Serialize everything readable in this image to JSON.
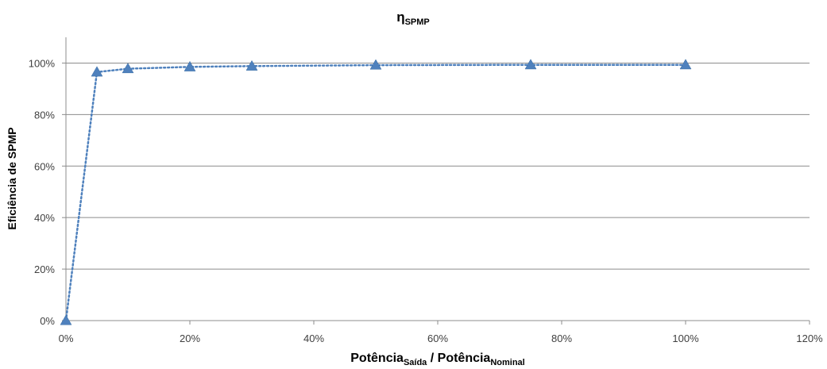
{
  "chart_data": {
    "type": "line",
    "title": {
      "main": "η",
      "subscript": "SPMP"
    },
    "xlabel": {
      "part1": "Potência",
      "sub1": "Saída",
      "sep": " / ",
      "part2": "Potência",
      "sub2": "Nominal"
    },
    "ylabel": "Eficiência de SPMP",
    "xlim": [
      0,
      120
    ],
    "ylim": [
      0,
      110
    ],
    "x_ticks": [
      0,
      20,
      40,
      60,
      80,
      100,
      120
    ],
    "x_tick_labels": [
      "0%",
      "20%",
      "40%",
      "60%",
      "80%",
      "100%",
      "120%"
    ],
    "y_ticks": [
      0,
      20,
      40,
      60,
      80,
      100
    ],
    "y_tick_labels": [
      "0%",
      "20%",
      "40%",
      "60%",
      "80%",
      "100%"
    ],
    "grid": "horizontal",
    "legend": "none",
    "series": [
      {
        "marker": "triangle",
        "line_style": "dotted",
        "color": "#4F81BD",
        "x": [
          0,
          5,
          10,
          20,
          30,
          50,
          75,
          100
        ],
        "y": [
          0,
          96.5,
          97.8,
          98.5,
          98.8,
          99.2,
          99.3,
          99.3
        ]
      }
    ]
  }
}
